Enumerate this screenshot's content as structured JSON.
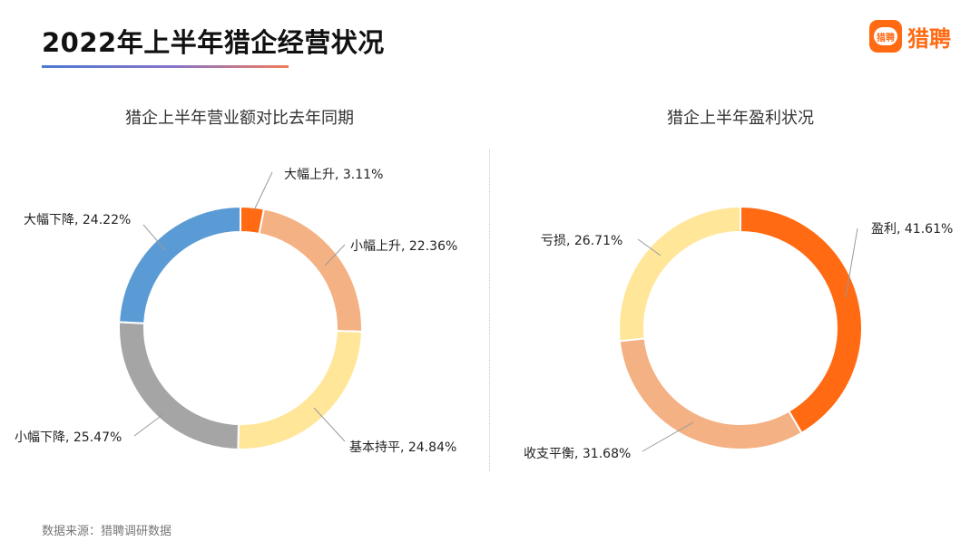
{
  "header": {
    "title": "2022年上半年猎企经营状况",
    "logo_text": "猎聘",
    "logo_badge_text": "猎聘",
    "accent": "#ff6a13"
  },
  "footer": {
    "source": "数据来源：猎聘调研数据"
  },
  "chart_data": [
    {
      "type": "pie",
      "donut": true,
      "title": "猎企上半年营业额对比去年同期",
      "legend": "none",
      "slices": [
        {
          "label": "大幅上升",
          "value": 3.11,
          "display": "大幅上升, 3.11%",
          "color": "#ff6a13"
        },
        {
          "label": "小幅上升",
          "value": 22.36,
          "display": "小幅上升, 22.36%",
          "color": "#f4b183"
        },
        {
          "label": "基本持平",
          "value": 24.84,
          "display": "基本持平, 24.84%",
          "color": "#ffe699"
        },
        {
          "label": "小幅下降",
          "value": 25.47,
          "display": "小幅下降, 25.47%",
          "color": "#a5a5a5"
        },
        {
          "label": "大幅下降",
          "value": 24.22,
          "display": "大幅下降, 24.22%",
          "color": "#5b9bd5"
        }
      ]
    },
    {
      "type": "pie",
      "donut": true,
      "title": "猎企上半年盈利状况",
      "legend": "none",
      "slices": [
        {
          "label": "盈利",
          "value": 41.61,
          "display": "盈利, 41.61%",
          "color": "#ff6a13"
        },
        {
          "label": "收支平衡",
          "value": 31.68,
          "display": "收支平衡, 31.68%",
          "color": "#f4b183"
        },
        {
          "label": "亏损",
          "value": 26.71,
          "display": "亏损, 26.71%",
          "color": "#ffe699"
        }
      ]
    }
  ]
}
